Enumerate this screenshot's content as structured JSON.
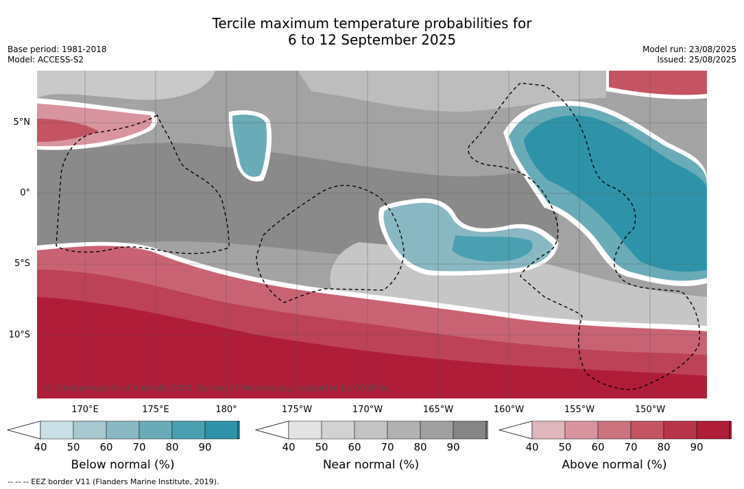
{
  "title_line1": "Tercile maximum temperature probabilities for",
  "title_line2": "6 to 12 September 2025",
  "meta_left": {
    "base_period": "Base period: 1981-2018",
    "model": "Model: ACCESS-S2"
  },
  "meta_right": {
    "model_run": "Model run: 23/08/2025",
    "issued": "Issued: 25/08/2025"
  },
  "lat_labels": [
    "5°N",
    "0°",
    "5°S",
    "10°S"
  ],
  "lon_labels": [
    "170°E",
    "175°E",
    "180°",
    "175°W",
    "170°W",
    "165°W",
    "160°W",
    "155°W",
    "150°W"
  ],
  "copyright": "© Commonwealth of Australia 2025, Bureau of Meteorology, supported by COSPPac",
  "colorbars": [
    {
      "title": "Below normal (%)",
      "ticks": [
        "40",
        "50",
        "60",
        "70",
        "80",
        "90"
      ],
      "colors": [
        "#c8e0e6",
        "#a7c8cf",
        "#89b8c3",
        "#6aabb8",
        "#4aa0b1",
        "#2e93a8"
      ]
    },
    {
      "title": "Near normal (%)",
      "ticks": [
        "40",
        "50",
        "60",
        "70",
        "80",
        "90"
      ],
      "colors": [
        "#e3e3e3",
        "#d2d2d2",
        "#c3c3c3",
        "#b1b1b1",
        "#a0a0a0",
        "#858585"
      ]
    },
    {
      "title": "Above normal (%)",
      "ticks": [
        "40",
        "50",
        "60",
        "70",
        "80",
        "90"
      ],
      "colors": [
        "#e0b7bd",
        "#d8959f",
        "#cc7380",
        "#c45462",
        "#b83549",
        "#b01d39"
      ]
    }
  ],
  "footnote": "-- -- -- EEZ border V11 (Flanders Marine Institute, 2019)."
}
